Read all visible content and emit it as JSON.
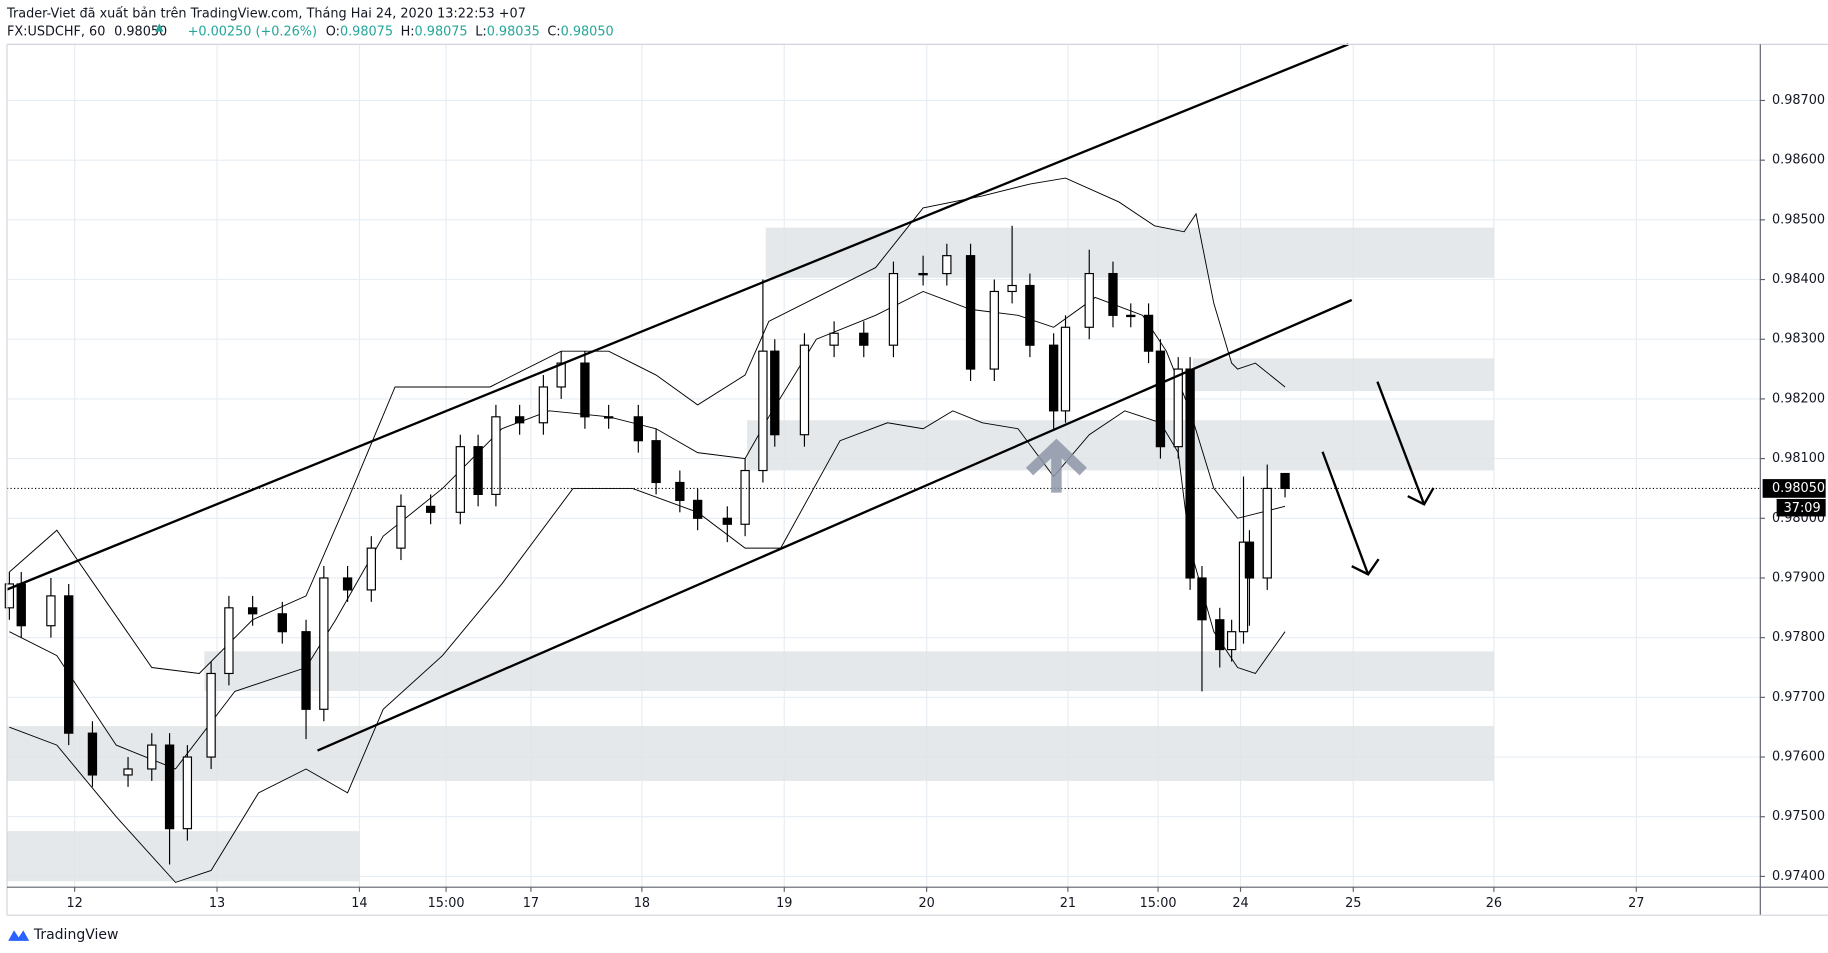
{
  "header": {
    "title": "Trader-Viet đã xuất bản trên TradingView.com, Tháng Hai 24, 2020 13:22:53 +07",
    "symbol": "FX:USDCHF, 60",
    "price": "0.98050",
    "change": "+0.00250 (+0.26%)",
    "ohlc": [
      {
        "label": "O:",
        "value": "0.98075"
      },
      {
        "label": "H:",
        "value": "0.98075"
      },
      {
        "label": "L:",
        "value": "0.98035"
      },
      {
        "label": "C:",
        "value": "0.98050"
      }
    ]
  },
  "chart_data": {
    "type": "candlestick",
    "x": [
      -11,
      -9,
      -4,
      -1,
      3,
      9,
      13,
      16,
      19,
      23,
      26,
      30,
      35,
      39,
      42,
      46,
      50,
      55,
      60,
      65,
      68,
      71,
      75,
      79,
      82,
      86,
      90,
      95,
      98,
      102,
      105,
      110,
      113,
      116,
      118,
      123,
      128,
      133,
      138,
      143,
      147,
      151,
      155,
      158,
      161,
      165,
      167,
      171,
      175,
      178,
      181,
      183,
      186,
      188,
      190,
      193,
      195,
      197,
      198,
      201,
      204
    ],
    "open": [
      0.9785,
      0.9789,
      0.9782,
      0.9787,
      0.9764,
      0.9757,
      0.9758,
      0.9762,
      0.9748,
      0.976,
      0.9774,
      0.9785,
      0.9784,
      0.9781,
      0.9768,
      0.979,
      0.9788,
      0.9795,
      0.9802,
      0.9801,
      0.9812,
      0.9804,
      0.9817,
      0.9816,
      0.9822,
      0.9826,
      0.9817,
      0.9817,
      0.9813,
      0.9806,
      0.9803,
      0.98,
      0.9799,
      0.9808,
      0.9828,
      0.9814,
      0.9829,
      0.9831,
      0.9829,
      0.9841,
      0.9841,
      0.9844,
      0.9825,
      0.9838,
      0.9839,
      0.9829,
      0.9818,
      0.9832,
      0.9841,
      0.9834,
      0.9834,
      0.9828,
      0.9812,
      0.9825,
      0.979,
      0.9783,
      0.9778,
      0.9781,
      0.9796,
      0.979,
      0.98075
    ],
    "high": [
      0.9791,
      0.9791,
      0.979,
      0.9789,
      0.9766,
      0.976,
      0.9764,
      0.9764,
      0.9762,
      0.9776,
      0.9787,
      0.9787,
      0.9786,
      0.9783,
      0.9792,
      0.9792,
      0.9797,
      0.9804,
      0.9804,
      0.9814,
      0.9814,
      0.9819,
      0.9819,
      0.9824,
      0.9828,
      0.9828,
      0.9819,
      0.9819,
      0.9815,
      0.9808,
      0.9805,
      0.9802,
      0.981,
      0.984,
      0.983,
      0.9831,
      0.9833,
      0.9833,
      0.9843,
      0.9844,
      0.9846,
      0.9846,
      0.984,
      0.9849,
      0.9841,
      0.9831,
      0.9834,
      0.9845,
      0.9843,
      0.9836,
      0.9836,
      0.983,
      0.9827,
      0.9827,
      0.9792,
      0.9785,
      0.9783,
      0.9807,
      0.9798,
      0.9809,
      0.98075
    ],
    "low": [
      0.9783,
      0.978,
      0.978,
      0.9762,
      0.9755,
      0.9755,
      0.9756,
      0.9742,
      0.9746,
      0.9758,
      0.9772,
      0.9782,
      0.9779,
      0.9763,
      0.9766,
      0.9786,
      0.9786,
      0.9793,
      0.9799,
      0.9799,
      0.9802,
      0.9802,
      0.9814,
      0.9814,
      0.982,
      0.9815,
      0.9815,
      0.9811,
      0.9804,
      0.9801,
      0.9798,
      0.9796,
      0.9797,
      0.9806,
      0.9812,
      0.9812,
      0.9827,
      0.9827,
      0.9827,
      0.9839,
      0.9839,
      0.9823,
      0.9823,
      0.9836,
      0.9827,
      0.9815,
      0.9816,
      0.983,
      0.9832,
      0.9832,
      0.9826,
      0.981,
      0.981,
      0.9788,
      0.9771,
      0.9775,
      0.9776,
      0.9779,
      0.9782,
      0.9788,
      0.98035
    ],
    "close": [
      0.9789,
      0.9782,
      0.9787,
      0.9764,
      0.9757,
      0.9758,
      0.9762,
      0.9748,
      0.976,
      0.9774,
      0.9785,
      0.9784,
      0.9781,
      0.9768,
      0.979,
      0.9788,
      0.9795,
      0.9802,
      0.9801,
      0.9812,
      0.9804,
      0.9817,
      0.9816,
      0.9822,
      0.9826,
      0.9817,
      0.9817,
      0.9813,
      0.9806,
      0.9803,
      0.98,
      0.9799,
      0.9808,
      0.9828,
      0.9814,
      0.9829,
      0.9831,
      0.9829,
      0.9841,
      0.9841,
      0.9844,
      0.9825,
      0.9838,
      0.9839,
      0.9829,
      0.9818,
      0.9832,
      0.9841,
      0.9834,
      0.9834,
      0.9828,
      0.9812,
      0.9825,
      0.979,
      0.9783,
      0.9778,
      0.9781,
      0.9796,
      0.979,
      0.9805,
      0.9805
    ],
    "up_color": "#ffffff",
    "down_color": "#000000",
    "outline_color": "#000000",
    "bands": [
      {
        "color": "#000000",
        "x": [
          -11,
          -3,
          13,
          21,
          30,
          39,
          46,
          54,
          70,
          82,
          90,
          98,
          105,
          113,
          117,
          125,
          135,
          143,
          153,
          161,
          167,
          176,
          182,
          187,
          189,
          192,
          195,
          196,
          199,
          204
        ],
        "values": [
          0.9791,
          0.9798,
          0.9775,
          0.9774,
          0.9783,
          0.9787,
          0.9803,
          0.9822,
          0.9822,
          0.9828,
          0.9828,
          0.9824,
          0.9819,
          0.9824,
          0.9833,
          0.9837,
          0.9842,
          0.9852,
          0.9854,
          0.9856,
          0.9857,
          0.9853,
          0.9849,
          0.9848,
          0.9851,
          0.9836,
          0.9826,
          0.9825,
          0.9826,
          0.9822
        ]
      },
      {
        "color": "#000000",
        "x": [
          -11,
          -3,
          7,
          17,
          27,
          39,
          44,
          52,
          62,
          72,
          80,
          90,
          98,
          105,
          113,
          117,
          125,
          135,
          143,
          151,
          159,
          165,
          172,
          180,
          184,
          188,
          192,
          196,
          200,
          204
        ],
        "values": [
          0.9781,
          0.9777,
          0.9762,
          0.9758,
          0.9771,
          0.9775,
          0.9783,
          0.9797,
          0.9805,
          0.9815,
          0.9818,
          0.9817,
          0.9815,
          0.9811,
          0.981,
          0.9817,
          0.983,
          0.9834,
          0.9838,
          0.9835,
          0.9834,
          0.9832,
          0.9837,
          0.9834,
          0.9828,
          0.9818,
          0.9805,
          0.98,
          0.9801,
          0.9802
        ]
      },
      {
        "color": "#000000",
        "x": [
          -11,
          -3,
          7,
          17,
          23,
          31,
          39,
          46,
          52,
          62,
          72,
          84,
          94,
          105,
          113,
          119,
          129,
          137,
          143,
          148,
          153,
          159,
          165,
          171,
          177,
          183,
          186,
          188,
          192,
          196,
          199,
          204
        ],
        "values": [
          0.9765,
          0.9762,
          0.975,
          0.9739,
          0.9741,
          0.9754,
          0.9758,
          0.9754,
          0.9768,
          0.9777,
          0.9789,
          0.9805,
          0.9805,
          0.9801,
          0.9795,
          0.9795,
          0.9813,
          0.9816,
          0.9815,
          0.9818,
          0.9816,
          0.9815,
          0.9807,
          0.9814,
          0.9818,
          0.9816,
          0.9811,
          0.9795,
          0.9781,
          0.9775,
          0.9774,
          0.9781
        ]
      }
    ],
    "xlim": [
      -11.4,
      284.1
    ],
    "ylim": [
      0.97382,
      0.98794
    ],
    "xticks": [
      {
        "value": 0,
        "label": "12"
      },
      {
        "value": 24,
        "label": "13"
      },
      {
        "value": 48,
        "label": "14"
      },
      {
        "value": 62.6,
        "label": "15:00"
      },
      {
        "value": 76.9,
        "label": "17"
      },
      {
        "value": 95.6,
        "label": "18"
      },
      {
        "value": 119.6,
        "label": "19"
      },
      {
        "value": 143.6,
        "label": "20"
      },
      {
        "value": 167.4,
        "label": "21"
      },
      {
        "value": 182.6,
        "label": "15:00"
      },
      {
        "value": 196.5,
        "label": "24"
      },
      {
        "value": 215.5,
        "label": "25"
      },
      {
        "value": 239.2,
        "label": "26"
      },
      {
        "value": 263.2,
        "label": "27"
      }
    ],
    "yticks": [
      {
        "value": 0.974,
        "label": "0.97400"
      },
      {
        "value": 0.975,
        "label": "0.97500"
      },
      {
        "value": 0.976,
        "label": "0.97600"
      },
      {
        "value": 0.977,
        "label": "0.97700"
      },
      {
        "value": 0.978,
        "label": "0.97800"
      },
      {
        "value": 0.979,
        "label": "0.97900"
      },
      {
        "value": 0.98,
        "label": "0.98000"
      },
      {
        "value": 0.981,
        "label": "0.98100"
      },
      {
        "value": 0.982,
        "label": "0.98200"
      },
      {
        "value": 0.983,
        "label": "0.98300"
      },
      {
        "value": 0.984,
        "label": "0.98400"
      },
      {
        "value": 0.985,
        "label": "0.98500"
      },
      {
        "value": 0.986,
        "label": "0.98600"
      },
      {
        "value": 0.987,
        "label": "0.98700"
      }
    ],
    "grid": true,
    "grid_color": "#e6edf3",
    "last_price": {
      "value": 0.9805,
      "label": "0.98050"
    },
    "countdown": "37:09"
  },
  "footer": {
    "brand": "TradingView"
  }
}
